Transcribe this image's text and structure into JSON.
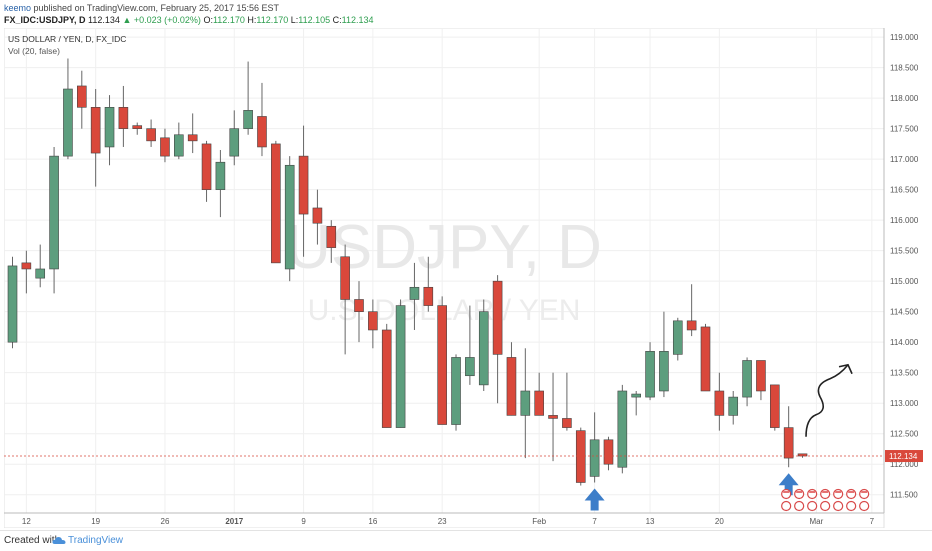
{
  "header": {
    "user": "keemo",
    "published": "published on TradingView.com, February 25, 2017 15:56 EST",
    "symbol": "FX_IDC:USDJPY, D",
    "last": "112.134",
    "change": "+0.023 (+0.02%)",
    "o_label": "O:",
    "o_value": "112.170",
    "h_label": "H:",
    "h_value": "112.170",
    "l_label": "L:",
    "l_value": "112.105",
    "c_label": "C:",
    "c_value": "112.134"
  },
  "footer": {
    "created": "Created with",
    "brand": "TradingView"
  },
  "chart_data": {
    "type": "candlestick",
    "title": "US DOLLAR / YEN, D, FX_IDC",
    "subtitle": "Vol (20, false)",
    "watermark_symbol": "USDJPY, D",
    "watermark_name": "U.S. DOLLAR / YEN",
    "last_price_label": "112.134",
    "last_price": 112.134,
    "ylim": [
      111.2,
      119.15
    ],
    "yticks": [
      "111.500",
      "112.000",
      "112.500",
      "113.000",
      "113.500",
      "114.000",
      "114.500",
      "115.000",
      "115.500",
      "116.000",
      "116.500",
      "117.000",
      "117.500",
      "118.000",
      "118.500",
      "119.000"
    ],
    "xticks": [
      {
        "label": "12",
        "bar": 1
      },
      {
        "label": "19",
        "bar": 6
      },
      {
        "label": "26",
        "bar": 11
      },
      {
        "label": "2017",
        "bar": 16
      },
      {
        "label": "9",
        "bar": 21
      },
      {
        "label": "16",
        "bar": 26
      },
      {
        "label": "23",
        "bar": 31
      },
      {
        "label": "Feb",
        "bar": 38
      },
      {
        "label": "7",
        "bar": 42
      },
      {
        "label": "13",
        "bar": 46
      },
      {
        "label": "20",
        "bar": 51
      },
      {
        "label": "Mar",
        "bar": 58
      },
      {
        "label": "7",
        "bar": 62
      }
    ],
    "grid": true,
    "up_color": "#5d9e7e",
    "down_color": "#d9483b",
    "candles": [
      {
        "o": 114.0,
        "h": 115.4,
        "l": 113.9,
        "c": 115.25
      },
      {
        "o": 115.3,
        "h": 115.5,
        "l": 114.8,
        "c": 115.2
      },
      {
        "o": 115.05,
        "h": 115.6,
        "l": 114.9,
        "c": 115.2
      },
      {
        "o": 115.2,
        "h": 117.2,
        "l": 114.8,
        "c": 117.05
      },
      {
        "o": 117.05,
        "h": 118.65,
        "l": 117.0,
        "c": 118.15
      },
      {
        "o": 118.2,
        "h": 118.45,
        "l": 117.5,
        "c": 117.85
      },
      {
        "o": 117.85,
        "h": 118.15,
        "l": 116.55,
        "c": 117.1
      },
      {
        "o": 117.2,
        "h": 118.05,
        "l": 116.9,
        "c": 117.85
      },
      {
        "o": 117.85,
        "h": 118.2,
        "l": 117.2,
        "c": 117.5
      },
      {
        "o": 117.55,
        "h": 117.6,
        "l": 117.4,
        "c": 117.5
      },
      {
        "o": 117.5,
        "h": 117.65,
        "l": 117.2,
        "c": 117.3
      },
      {
        "o": 117.35,
        "h": 117.5,
        "l": 116.95,
        "c": 117.05
      },
      {
        "o": 117.05,
        "h": 117.6,
        "l": 117.0,
        "c": 117.4
      },
      {
        "o": 117.4,
        "h": 117.75,
        "l": 117.1,
        "c": 117.3
      },
      {
        "o": 117.25,
        "h": 117.3,
        "l": 116.3,
        "c": 116.5
      },
      {
        "o": 116.5,
        "h": 117.15,
        "l": 116.05,
        "c": 116.95
      },
      {
        "o": 117.05,
        "h": 117.8,
        "l": 116.9,
        "c": 117.5
      },
      {
        "o": 117.5,
        "h": 118.6,
        "l": 117.4,
        "c": 117.8
      },
      {
        "o": 117.7,
        "h": 118.25,
        "l": 117.05,
        "c": 117.2
      },
      {
        "o": 117.25,
        "h": 117.3,
        "l": 115.3,
        "c": 115.3
      },
      {
        "o": 115.2,
        "h": 117.05,
        "l": 115.0,
        "c": 116.9
      },
      {
        "o": 117.05,
        "h": 117.55,
        "l": 115.4,
        "c": 116.1
      },
      {
        "o": 116.2,
        "h": 116.5,
        "l": 115.6,
        "c": 115.95
      },
      {
        "o": 115.9,
        "h": 116.0,
        "l": 115.3,
        "c": 115.55
      },
      {
        "o": 115.4,
        "h": 115.6,
        "l": 113.8,
        "c": 114.7
      },
      {
        "o": 114.7,
        "h": 115.0,
        "l": 114.0,
        "c": 114.5
      },
      {
        "o": 114.5,
        "h": 114.7,
        "l": 113.9,
        "c": 114.2
      },
      {
        "o": 114.2,
        "h": 114.3,
        "l": 112.6,
        "c": 112.6
      },
      {
        "o": 112.6,
        "h": 114.7,
        "l": 112.6,
        "c": 114.6
      },
      {
        "o": 114.7,
        "h": 115.3,
        "l": 114.2,
        "c": 114.9
      },
      {
        "o": 114.9,
        "h": 115.4,
        "l": 114.5,
        "c": 114.6
      },
      {
        "o": 114.6,
        "h": 114.75,
        "l": 112.65,
        "c": 112.65
      },
      {
        "o": 112.65,
        "h": 113.8,
        "l": 112.55,
        "c": 113.75
      },
      {
        "o": 113.45,
        "h": 114.6,
        "l": 113.3,
        "c": 113.75
      },
      {
        "o": 113.3,
        "h": 114.7,
        "l": 113.2,
        "c": 114.5
      },
      {
        "o": 115.0,
        "h": 115.1,
        "l": 113.0,
        "c": 113.8
      },
      {
        "o": 113.75,
        "h": 114.0,
        "l": 112.8,
        "c": 112.8
      },
      {
        "o": 112.8,
        "h": 113.9,
        "l": 112.1,
        "c": 113.2
      },
      {
        "o": 113.2,
        "h": 113.5,
        "l": 112.8,
        "c": 112.8
      },
      {
        "o": 112.8,
        "h": 113.5,
        "l": 112.05,
        "c": 112.75
      },
      {
        "o": 112.75,
        "h": 113.5,
        "l": 112.55,
        "c": 112.6
      },
      {
        "o": 112.55,
        "h": 112.6,
        "l": 111.65,
        "c": 111.7
      },
      {
        "o": 111.8,
        "h": 112.85,
        "l": 111.7,
        "c": 112.4
      },
      {
        "o": 112.4,
        "h": 112.45,
        "l": 111.9,
        "c": 112.0
      },
      {
        "o": 111.95,
        "h": 113.3,
        "l": 111.85,
        "c": 113.2
      },
      {
        "o": 113.1,
        "h": 113.2,
        "l": 112.8,
        "c": 113.15
      },
      {
        "o": 113.1,
        "h": 114.0,
        "l": 113.05,
        "c": 113.85
      },
      {
        "o": 113.2,
        "h": 114.5,
        "l": 113.1,
        "c": 113.85
      },
      {
        "o": 113.8,
        "h": 114.4,
        "l": 113.7,
        "c": 114.35
      },
      {
        "o": 114.35,
        "h": 114.95,
        "l": 114.1,
        "c": 114.2
      },
      {
        "o": 114.25,
        "h": 114.3,
        "l": 113.2,
        "c": 113.2
      },
      {
        "o": 113.2,
        "h": 113.5,
        "l": 112.55,
        "c": 112.8
      },
      {
        "o": 112.8,
        "h": 113.2,
        "l": 112.65,
        "c": 113.1
      },
      {
        "o": 113.1,
        "h": 113.75,
        "l": 112.95,
        "c": 113.7
      },
      {
        "o": 113.7,
        "h": 113.7,
        "l": 113.05,
        "c": 113.2
      },
      {
        "o": 113.3,
        "h": 113.3,
        "l": 112.55,
        "c": 112.6
      },
      {
        "o": 112.6,
        "h": 112.95,
        "l": 111.95,
        "c": 112.1
      },
      {
        "o": 112.17,
        "h": 112.17,
        "l": 112.105,
        "c": 112.134
      }
    ],
    "arrow_up_bars": [
      42,
      56
    ]
  }
}
